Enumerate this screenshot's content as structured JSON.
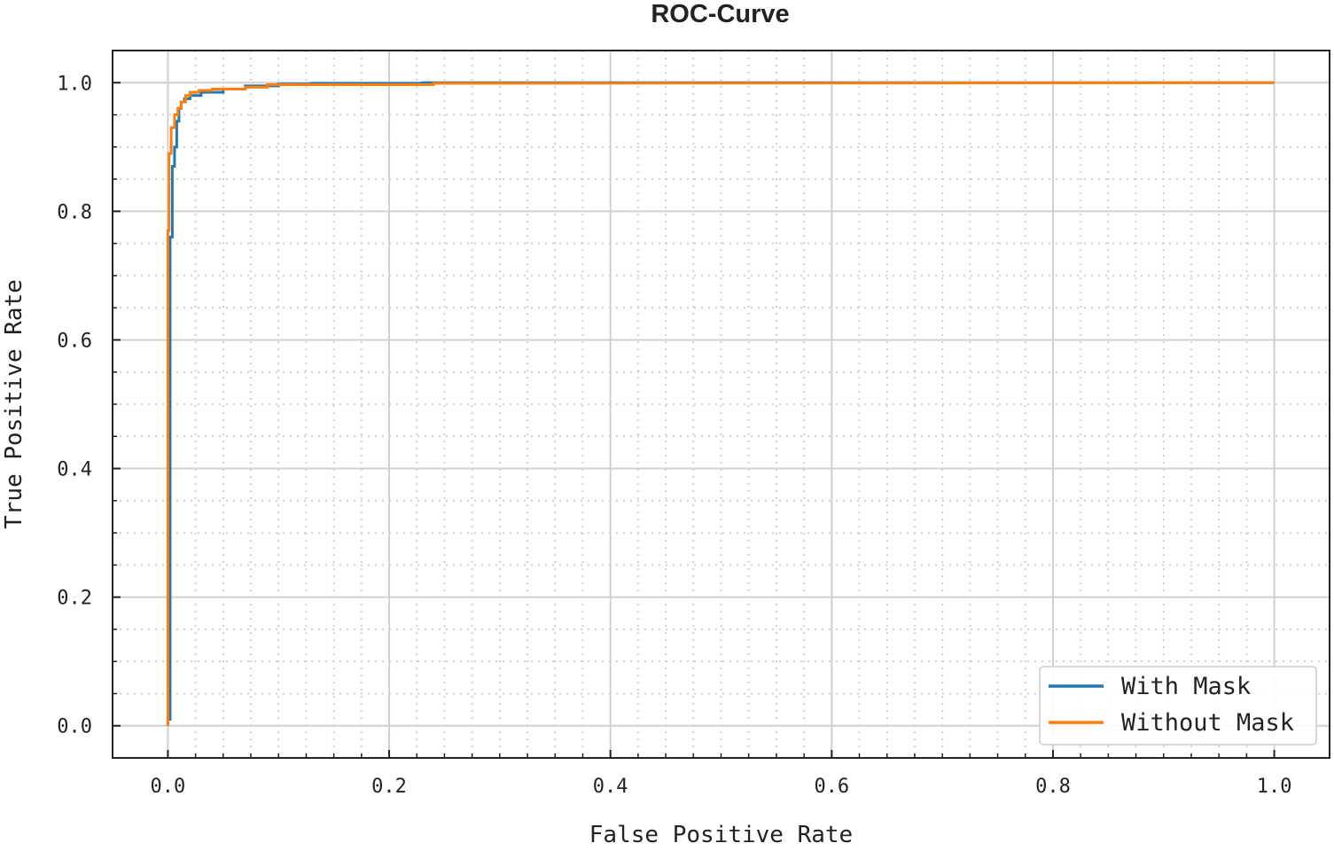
{
  "chart_data": {
    "type": "line",
    "title": "ROC-Curve",
    "xlabel": "False Positive Rate",
    "ylabel": "True Positive Rate",
    "xlim": [
      -0.05,
      1.05
    ],
    "ylim": [
      -0.05,
      1.05
    ],
    "xticks": [
      0.0,
      0.2,
      0.4,
      0.6,
      0.8,
      1.0
    ],
    "yticks": [
      0.0,
      0.2,
      0.4,
      0.6,
      0.8,
      1.0
    ],
    "xtick_labels": [
      "0.0",
      "0.2",
      "0.4",
      "0.6",
      "0.8",
      "1.0"
    ],
    "ytick_labels": [
      "0.0",
      "0.2",
      "0.4",
      "0.6",
      "0.8",
      "1.0"
    ],
    "grid": true,
    "legend_position": "bottom-right",
    "series": [
      {
        "name": "With Mask",
        "color": "#1f77b4",
        "step": true,
        "x": [
          0.0,
          0.0,
          0.002,
          0.002,
          0.004,
          0.004,
          0.006,
          0.006,
          0.008,
          0.008,
          0.01,
          0.01,
          0.012,
          0.012,
          0.015,
          0.015,
          0.02,
          0.02,
          0.03,
          0.03,
          0.05,
          0.05,
          0.07,
          0.07,
          0.1,
          0.1,
          0.13,
          0.13,
          0.23,
          0.23,
          0.98,
          0.98,
          1.0
        ],
        "y": [
          0.0,
          0.01,
          0.01,
          0.76,
          0.76,
          0.87,
          0.87,
          0.9,
          0.9,
          0.94,
          0.94,
          0.96,
          0.96,
          0.97,
          0.97,
          0.975,
          0.975,
          0.98,
          0.98,
          0.985,
          0.985,
          0.99,
          0.99,
          0.995,
          0.995,
          0.998,
          0.998,
          0.999,
          0.999,
          1.0,
          1.0,
          1.0,
          1.0
        ]
      },
      {
        "name": "Without Mask",
        "color": "#ff7f0e",
        "step": true,
        "x": [
          0.0,
          0.0,
          0.001,
          0.001,
          0.003,
          0.003,
          0.006,
          0.006,
          0.009,
          0.009,
          0.012,
          0.012,
          0.016,
          0.016,
          0.02,
          0.02,
          0.028,
          0.028,
          0.04,
          0.04,
          0.07,
          0.07,
          0.09,
          0.09,
          0.24,
          0.24,
          1.0
        ],
        "y": [
          0.0,
          0.77,
          0.77,
          0.89,
          0.89,
          0.93,
          0.93,
          0.95,
          0.95,
          0.96,
          0.96,
          0.97,
          0.97,
          0.98,
          0.98,
          0.985,
          0.985,
          0.988,
          0.988,
          0.99,
          0.99,
          0.993,
          0.993,
          0.997,
          0.997,
          0.999,
          1.0
        ]
      }
    ]
  }
}
